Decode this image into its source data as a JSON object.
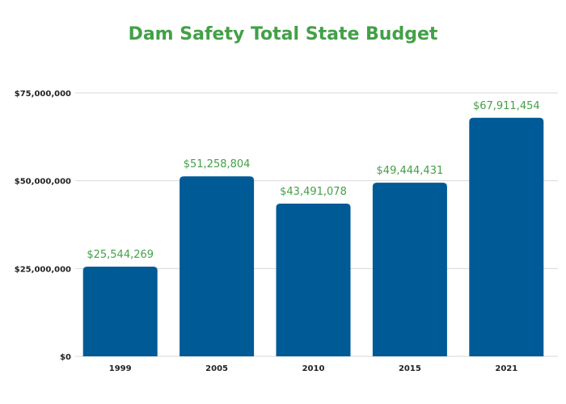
{
  "chart_data": {
    "type": "bar",
    "title": "Dam Safety Total State Budget",
    "categories": [
      "1999",
      "2005",
      "2010",
      "2015",
      "2021"
    ],
    "values": [
      25544269,
      51258804,
      43491078,
      49444431,
      67911454
    ],
    "data_labels": [
      "$25,544,269",
      "$51,258,804",
      "$43,491,078",
      "$49,444,431",
      "$67,911,454"
    ],
    "xlabel": "",
    "ylabel": "",
    "ylim": [
      0,
      75000000
    ],
    "yticks": [
      0,
      25000000,
      50000000,
      75000000
    ],
    "ytick_labels": [
      "$0",
      "$25,000,000",
      "$50,000,000",
      "$75,000,000"
    ],
    "grid": "horizontal",
    "colors": {
      "bar": "#005a96",
      "title": "#43a047",
      "data_label": "#43a047",
      "grid": "#d9d9d9"
    }
  }
}
